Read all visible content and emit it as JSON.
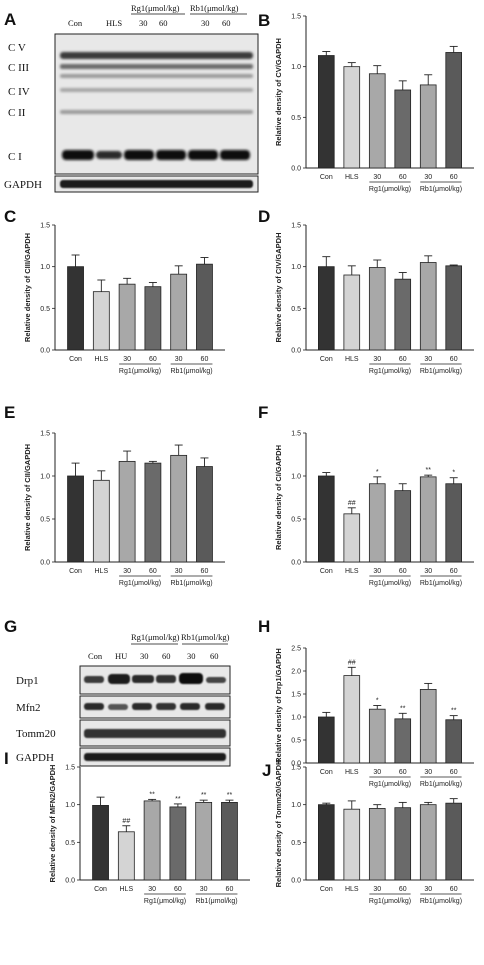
{
  "colors": {
    "con": "#333333",
    "hls": "#d4d4d4",
    "rg1_30": "#a8a8a8",
    "rg1_60": "#6a6a6a",
    "rb1_30": "#a8a8a8",
    "rb1_60": "#5a5a5a"
  },
  "blot_A": {
    "letter": "A",
    "lanes": [
      "Con",
      "HLS",
      "30",
      "60",
      "30",
      "60"
    ],
    "groups": [
      "Rg1(μmol/kg)",
      "Rb1(μmol/kg)"
    ],
    "bands": [
      "C V",
      "C III",
      "C IV",
      "C II",
      "C I"
    ],
    "loading": "GAPDH"
  },
  "blot_G": {
    "letter": "G",
    "lanes": [
      "Con",
      "HU",
      "30",
      "60",
      "30",
      "60"
    ],
    "groups": [
      "Rg1(μmol/kg)",
      "Rb1(μmol/kg)"
    ],
    "rows": [
      "Drp1",
      "Mfn2",
      "Tomm20",
      "GAPDH"
    ]
  },
  "chart_data": [
    {
      "panel": "B",
      "type": "bar",
      "categories": [
        "Con",
        "HLS",
        "30",
        "60",
        "30",
        "60"
      ],
      "groups": [
        "Rg1(μmol/kg)",
        "Rb1(μmol/kg)"
      ],
      "ylabel": "Relative density of CV/GAPDH",
      "ylim": [
        0,
        1.5
      ],
      "yticks": [
        "0.0",
        "0.5",
        "1.0",
        "1.5"
      ],
      "values": [
        1.11,
        1.0,
        0.93,
        0.77,
        0.82,
        1.14
      ],
      "errors": [
        0.04,
        0.04,
        0.08,
        0.09,
        0.1,
        0.06
      ],
      "sig": [
        "",
        "",
        "",
        "",
        "",
        ""
      ]
    },
    {
      "panel": "C",
      "type": "bar",
      "categories": [
        "Con",
        "HLS",
        "30",
        "60",
        "30",
        "60"
      ],
      "groups": [
        "Rg1(μmol/kg)",
        "Rb1(μmol/kg)"
      ],
      "ylabel": "Relative density of CIII/GAPDH",
      "ylim": [
        0,
        1.5
      ],
      "yticks": [
        "0.0",
        "0.5",
        "1.0",
        "1.5"
      ],
      "values": [
        1.0,
        0.7,
        0.79,
        0.76,
        0.91,
        1.03
      ],
      "errors": [
        0.14,
        0.14,
        0.07,
        0.05,
        0.1,
        0.08
      ],
      "sig": [
        "",
        "",
        "",
        "",
        "",
        ""
      ]
    },
    {
      "panel": "D",
      "type": "bar",
      "categories": [
        "Con",
        "HLS",
        "30",
        "60",
        "30",
        "60"
      ],
      "groups": [
        "Rg1(μmol/kg)",
        "Rb1(μmol/kg)"
      ],
      "ylabel": "Relative density of CIV/GAPDH",
      "ylim": [
        0,
        1.5
      ],
      "yticks": [
        "0.0",
        "0.5",
        "1.0",
        "1.5"
      ],
      "values": [
        1.0,
        0.9,
        0.99,
        0.85,
        1.05,
        1.01
      ],
      "errors": [
        0.12,
        0.11,
        0.09,
        0.08,
        0.08,
        0.01
      ],
      "sig": [
        "",
        "",
        "",
        "",
        "",
        ""
      ]
    },
    {
      "panel": "E",
      "type": "bar",
      "categories": [
        "Con",
        "HLS",
        "30",
        "60",
        "30",
        "60"
      ],
      "groups": [
        "Rg1(μmol/kg)",
        "Rb1(μmol/kg)"
      ],
      "ylabel": "Relative density of CII/GAPDH",
      "ylim": [
        0,
        1.5
      ],
      "yticks": [
        "0.0",
        "0.5",
        "1.0",
        "1.5"
      ],
      "values": [
        1.0,
        0.95,
        1.17,
        1.15,
        1.24,
        1.11
      ],
      "errors": [
        0.15,
        0.11,
        0.12,
        0.02,
        0.12,
        0.1
      ],
      "sig": [
        "",
        "",
        "",
        "",
        "",
        ""
      ]
    },
    {
      "panel": "F",
      "type": "bar",
      "categories": [
        "Con",
        "HLS",
        "30",
        "60",
        "30",
        "60"
      ],
      "groups": [
        "Rg1(μmol/kg)",
        "Rb1(μmol/kg)"
      ],
      "ylabel": "Relative density of CI/GAPDH",
      "ylim": [
        0,
        1.5
      ],
      "yticks": [
        "0.0",
        "0.5",
        "1.0",
        "1.5"
      ],
      "values": [
        1.0,
        0.56,
        0.91,
        0.83,
        0.99,
        0.91
      ],
      "errors": [
        0.04,
        0.07,
        0.08,
        0.08,
        0.02,
        0.07
      ],
      "sig": [
        "",
        "##",
        "*",
        "",
        "**",
        "*"
      ]
    },
    {
      "panel": "H",
      "type": "bar",
      "categories": [
        "Con",
        "HLS",
        "30",
        "60",
        "30",
        "60"
      ],
      "groups": [
        "Rg1(μmol/kg)",
        "Rb1(μmol/kg)"
      ],
      "ylabel": "Relative density of Drp1/GAPDH",
      "ylim": [
        0,
        2.5
      ],
      "yticks": [
        "0.0",
        "0.5",
        "1.0",
        "1.5",
        "2.0",
        "2.5"
      ],
      "values": [
        1.0,
        1.9,
        1.17,
        0.96,
        1.6,
        0.94
      ],
      "errors": [
        0.1,
        0.18,
        0.08,
        0.12,
        0.13,
        0.09
      ],
      "sig": [
        "",
        "##",
        "*",
        "**",
        "",
        "**"
      ]
    },
    {
      "panel": "I",
      "type": "bar",
      "categories": [
        "Con",
        "HLS",
        "30",
        "60",
        "30",
        "60"
      ],
      "groups": [
        "Rg1(μmol/kg)",
        "Rb1(μmol/kg)"
      ],
      "ylabel": "Relative density of MFN2/GAPDH",
      "ylim": [
        0,
        1.5
      ],
      "yticks": [
        "0.0",
        "0.5",
        "1.0",
        "1.5"
      ],
      "values": [
        0.99,
        0.64,
        1.05,
        0.97,
        1.03,
        1.03
      ],
      "errors": [
        0.11,
        0.08,
        0.02,
        0.04,
        0.03,
        0.03
      ],
      "sig": [
        "",
        "##",
        "**",
        "**",
        "**",
        "**"
      ]
    },
    {
      "panel": "J",
      "type": "bar",
      "categories": [
        "Con",
        "HLS",
        "30",
        "60",
        "30",
        "60"
      ],
      "groups": [
        "Rg1(μmol/kg)",
        "Rb1(μmol/kg)"
      ],
      "ylabel": "Relative density of Tomm20/GAPDH",
      "ylim": [
        0,
        1.5
      ],
      "yticks": [
        "0.0",
        "0.5",
        "1.0",
        "1.5"
      ],
      "values": [
        1.0,
        0.94,
        0.95,
        0.96,
        1.0,
        1.02
      ],
      "errors": [
        0.02,
        0.11,
        0.05,
        0.07,
        0.03,
        0.06
      ],
      "sig": [
        "",
        "",
        "",
        "",
        "",
        ""
      ]
    }
  ]
}
